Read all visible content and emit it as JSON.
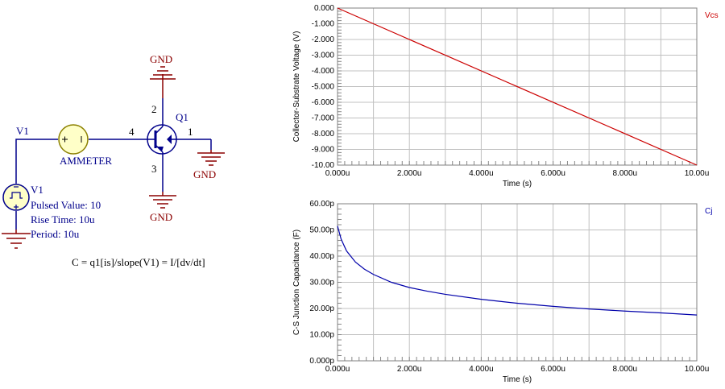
{
  "schematic": {
    "v1_net_label": "V1",
    "ammeter_label": "AMMETER",
    "node_4": "4",
    "node_1": "1",
    "node_2": "2",
    "node_3": "3",
    "q1_label": "Q1",
    "gnd_top": "GND",
    "gnd_right": "GND",
    "gnd_bottom": "GND",
    "source_name": "V1",
    "source_pulsed": "Pulsed Value: 10",
    "source_rise": "Rise Time: 10u",
    "source_period": "Period: 10u",
    "equation": "C = q1[is]/slope(V1) = I/[dv/dt]",
    "wire_color": "#00008b",
    "gnd_color": "#8b0000",
    "transistor_color": "#00008b"
  },
  "chart_data": [
    {
      "type": "line",
      "title": "",
      "xlabel": "Time (s)",
      "ylabel": "Collector-Substrate Voltage (V)",
      "xlim": [
        0,
        10
      ],
      "ylim": [
        -10,
        0
      ],
      "x_ticks": [
        "0.000u",
        "2.000u",
        "4.000u",
        "6.000u",
        "8.000u",
        "10.00u"
      ],
      "y_ticks": [
        "0.000",
        "-1.000",
        "-2.000",
        "-3.000",
        "-4.000",
        "-5.000",
        "-6.000",
        "-7.000",
        "-8.000",
        "-9.000",
        "-10.00"
      ],
      "grid": true,
      "series": [
        {
          "name": "Vcs",
          "color": "#cc0000",
          "x": [
            0,
            10
          ],
          "y": [
            0,
            -10
          ]
        }
      ]
    },
    {
      "type": "line",
      "title": "",
      "xlabel": "Time (s)",
      "ylabel": "C-S Junction Capacitance (F)",
      "xlim": [
        0,
        10
      ],
      "ylim": [
        0,
        60
      ],
      "x_ticks": [
        "0.000u",
        "2.000u",
        "4.000u",
        "6.000u",
        "8.000u",
        "10.00u"
      ],
      "y_ticks": [
        "60.00p",
        "50.00p",
        "40.00p",
        "30.00p",
        "20.00p",
        "10.00p",
        "0.000p"
      ],
      "grid": true,
      "series": [
        {
          "name": "Cj",
          "color": "#0000aa",
          "x": [
            0,
            0.1,
            0.25,
            0.5,
            0.75,
            1,
            1.5,
            2,
            2.5,
            3,
            4,
            5,
            6,
            7,
            8,
            9,
            10
          ],
          "y": [
            51.5,
            46.5,
            42.0,
            37.7,
            35.0,
            33.0,
            30.0,
            28.0,
            26.6,
            25.4,
            23.5,
            22.0,
            20.8,
            19.8,
            19.0,
            18.3,
            17.5
          ]
        }
      ]
    }
  ]
}
